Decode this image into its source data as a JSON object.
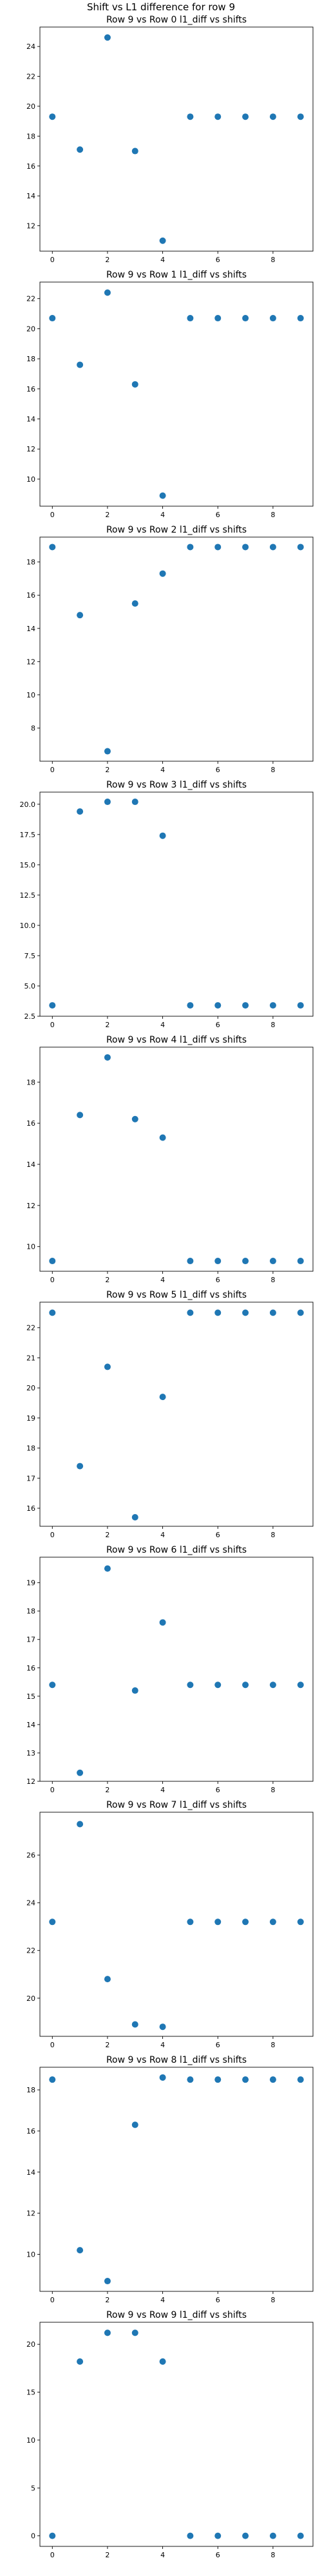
{
  "suptitle": "Shift vs L1 difference for row 9",
  "colors": {
    "marker": "#1f77b4",
    "axes": "#000000"
  },
  "chart_data": [
    {
      "type": "scatter",
      "title": "Row 9 vs Row 0 l1_diff vs shifts",
      "x": [
        0,
        1,
        2,
        3,
        4,
        5,
        6,
        7,
        8,
        9
      ],
      "y": [
        19.3,
        17.1,
        24.6,
        17.0,
        11.0,
        19.3,
        19.3,
        19.3,
        19.3,
        19.3
      ],
      "xticks": [
        0,
        2,
        4,
        6,
        8
      ],
      "yticks": [
        12,
        14,
        16,
        18,
        20,
        22,
        24
      ],
      "xlim": [
        -0.45,
        9.45
      ],
      "ylim": [
        10.3,
        25.3
      ],
      "grid": false
    },
    {
      "type": "scatter",
      "title": "Row 9 vs Row 1 l1_diff vs shifts",
      "x": [
        0,
        1,
        2,
        3,
        4,
        5,
        6,
        7,
        8,
        9
      ],
      "y": [
        20.7,
        17.6,
        22.4,
        16.3,
        8.9,
        20.7,
        20.7,
        20.7,
        20.7,
        20.7
      ],
      "xticks": [
        0,
        2,
        4,
        6,
        8
      ],
      "yticks": [
        10,
        12,
        14,
        16,
        18,
        20,
        22
      ],
      "xlim": [
        -0.45,
        9.45
      ],
      "ylim": [
        8.2,
        23.1
      ],
      "grid": false
    },
    {
      "type": "scatter",
      "title": "Row 9 vs Row 2 l1_diff vs shifts",
      "x": [
        0,
        1,
        2,
        3,
        4,
        5,
        6,
        7,
        8,
        9
      ],
      "y": [
        18.9,
        14.8,
        6.6,
        15.5,
        17.3,
        18.9,
        18.9,
        18.9,
        18.9,
        18.9
      ],
      "xticks": [
        0,
        2,
        4,
        6,
        8
      ],
      "yticks": [
        8,
        10,
        12,
        14,
        16,
        18
      ],
      "xlim": [
        -0.45,
        9.45
      ],
      "ylim": [
        6.0,
        19.5
      ],
      "grid": false
    },
    {
      "type": "scatter",
      "title": "Row 9 vs Row 3 l1_diff vs shifts",
      "x": [
        0,
        1,
        2,
        3,
        4,
        5,
        6,
        7,
        8,
        9
      ],
      "y": [
        3.4,
        19.4,
        20.2,
        20.2,
        17.4,
        3.4,
        3.4,
        3.4,
        3.4,
        3.4
      ],
      "xticks": [
        0,
        2,
        4,
        6,
        8
      ],
      "yticks": [
        2.5,
        5.0,
        7.5,
        10.0,
        12.5,
        15.0,
        17.5,
        20.0
      ],
      "ytick_labels": [
        "2.5",
        "5.0",
        "7.5",
        "10.0",
        "12.5",
        "15.0",
        "17.5",
        "20.0"
      ],
      "xlim": [
        -0.45,
        9.45
      ],
      "ylim": [
        2.5,
        21.0
      ],
      "grid": false
    },
    {
      "type": "scatter",
      "title": "Row 9 vs Row 4 l1_diff vs shifts",
      "x": [
        0,
        1,
        2,
        3,
        4,
        5,
        6,
        7,
        8,
        9
      ],
      "y": [
        9.3,
        16.4,
        19.2,
        16.2,
        15.3,
        9.3,
        9.3,
        9.3,
        9.3,
        9.3
      ],
      "xticks": [
        0,
        2,
        4,
        6,
        8
      ],
      "yticks": [
        10,
        12,
        14,
        16,
        18
      ],
      "xlim": [
        -0.45,
        9.45
      ],
      "ylim": [
        8.8,
        19.7
      ],
      "grid": false
    },
    {
      "type": "scatter",
      "title": "Row 9 vs Row 5 l1_diff vs shifts",
      "x": [
        0,
        1,
        2,
        3,
        4,
        5,
        6,
        7,
        8,
        9
      ],
      "y": [
        22.5,
        17.4,
        20.7,
        15.7,
        19.7,
        22.5,
        22.5,
        22.5,
        22.5,
        22.5
      ],
      "xticks": [
        0,
        2,
        4,
        6,
        8
      ],
      "yticks": [
        16,
        17,
        18,
        19,
        20,
        21,
        22
      ],
      "xlim": [
        -0.45,
        9.45
      ],
      "ylim": [
        15.4,
        22.85
      ],
      "grid": false
    },
    {
      "type": "scatter",
      "title": "Row 9 vs Row 6 l1_diff vs shifts",
      "x": [
        0,
        1,
        2,
        3,
        4,
        5,
        6,
        7,
        8,
        9
      ],
      "y": [
        15.4,
        12.3,
        19.5,
        15.2,
        17.6,
        15.4,
        15.4,
        15.4,
        15.4,
        15.4
      ],
      "xticks": [
        0,
        2,
        4,
        6,
        8
      ],
      "yticks": [
        12,
        13,
        14,
        15,
        16,
        17,
        18,
        19
      ],
      "xlim": [
        -0.45,
        9.45
      ],
      "ylim": [
        12.0,
        19.9
      ],
      "grid": false
    },
    {
      "type": "scatter",
      "title": "Row 9 vs Row 7 l1_diff vs shifts",
      "x": [
        0,
        1,
        2,
        3,
        4,
        5,
        6,
        7,
        8,
        9
      ],
      "y": [
        23.2,
        27.3,
        20.8,
        18.9,
        18.8,
        23.2,
        23.2,
        23.2,
        23.2,
        23.2
      ],
      "xticks": [
        0,
        2,
        4,
        6,
        8
      ],
      "yticks": [
        20,
        22,
        24,
        26
      ],
      "xlim": [
        -0.45,
        9.45
      ],
      "ylim": [
        18.4,
        27.8
      ],
      "grid": false
    },
    {
      "type": "scatter",
      "title": "Row 9 vs Row 8 l1_diff vs shifts",
      "x": [
        0,
        1,
        2,
        3,
        4,
        5,
        6,
        7,
        8,
        9
      ],
      "y": [
        18.5,
        10.2,
        8.7,
        16.3,
        18.6,
        18.5,
        18.5,
        18.5,
        18.5,
        18.5
      ],
      "xticks": [
        0,
        2,
        4,
        6,
        8
      ],
      "yticks": [
        10,
        12,
        14,
        16,
        18
      ],
      "xlim": [
        -0.45,
        9.45
      ],
      "ylim": [
        8.2,
        19.1
      ],
      "grid": false
    },
    {
      "type": "scatter",
      "title": "Row 9 vs Row 9 l1_diff vs shifts",
      "x": [
        0,
        1,
        2,
        3,
        4,
        5,
        6,
        7,
        8,
        9
      ],
      "y": [
        0.0,
        18.2,
        21.2,
        21.2,
        18.2,
        0.0,
        0.0,
        0.0,
        0.0,
        0.0
      ],
      "xticks": [
        0,
        2,
        4,
        6,
        8
      ],
      "yticks": [
        0,
        5,
        10,
        15,
        20
      ],
      "xlim": [
        -0.45,
        9.45
      ],
      "ylim": [
        -1.1,
        22.3
      ],
      "grid": false
    }
  ]
}
